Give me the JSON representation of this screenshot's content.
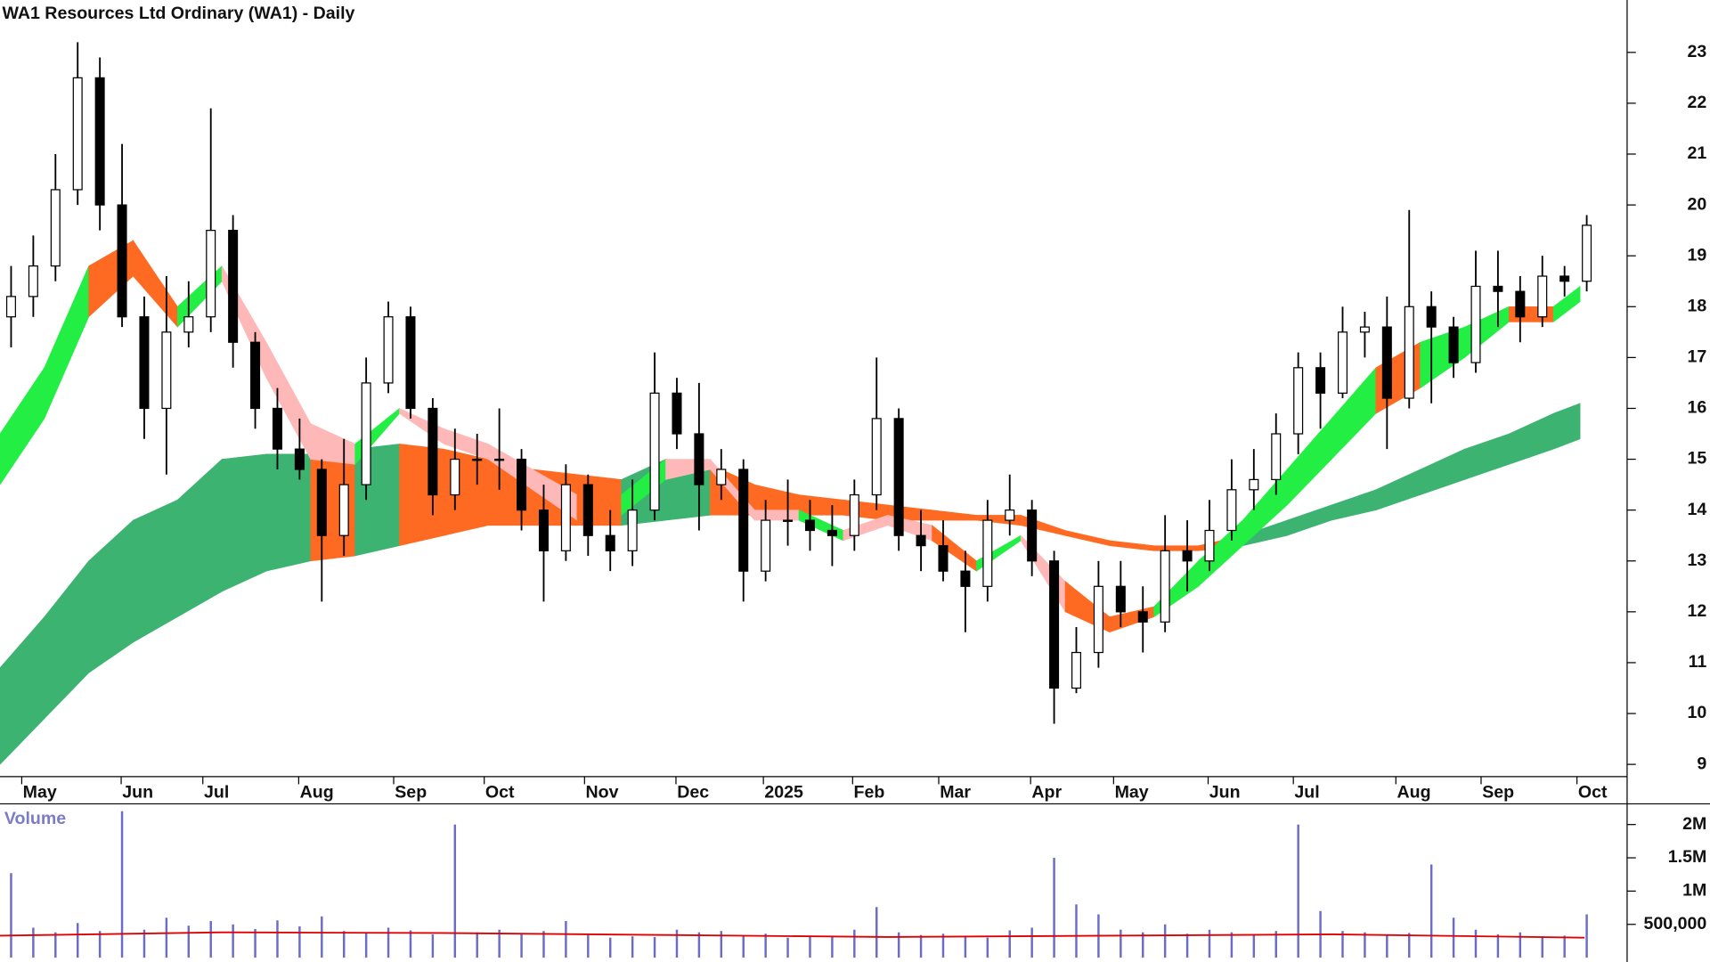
{
  "title": "WA1 Resources Ltd Ordinary (WA1) - Daily",
  "chart_data": [
    {
      "type": "candlestick",
      "x": [
        2.5,
        7.5,
        12.5,
        17.5,
        22.5,
        27.5,
        32.5,
        37.5,
        42.5,
        47.5,
        52.5,
        57.5,
        62.5,
        67.5,
        72.5,
        77.5,
        82.5,
        87.5,
        92.5,
        97.5,
        102.5,
        107.5,
        112.5,
        117.5,
        122.5,
        127.5,
        132.5,
        137.5,
        142.5,
        147.5,
        152.5,
        157.5,
        162.5,
        167.5,
        172.5,
        177.5,
        182.5,
        187.5,
        192.5,
        197.5,
        202.5,
        207.5,
        212.5,
        217.5,
        222.5,
        227.5,
        232.5,
        237.5,
        242.5,
        247.5,
        252.5,
        257.5,
        262.5,
        267.5,
        272.5,
        277.5,
        282.5,
        287.5,
        292.5,
        297.5,
        302.5,
        307.5,
        312.5,
        317.5,
        322.5,
        327.5,
        332.5,
        337.5,
        342.5,
        347.5,
        352.5,
        357.5
      ],
      "open": [
        17.8,
        18.2,
        18.8,
        20.3,
        22.5,
        20.0,
        17.8,
        16.0,
        17.5,
        17.8,
        19.5,
        17.3,
        16.0,
        15.2,
        14.8,
        13.5,
        14.5,
        16.5,
        17.8,
        16.0,
        14.3,
        15.0,
        15.0,
        15.0,
        14.0,
        13.2,
        14.5,
        13.5,
        13.2,
        14.0,
        16.3,
        15.5,
        14.5,
        14.8,
        12.8,
        13.8,
        13.8,
        13.6,
        13.5,
        14.3,
        15.8,
        13.5,
        13.3,
        12.8,
        12.5,
        13.8,
        14.0,
        13.0,
        10.5,
        11.2,
        12.5,
        12.0,
        11.8,
        13.2,
        13.0,
        13.6,
        14.4,
        14.6,
        15.5,
        16.8,
        16.3,
        17.5,
        17.6,
        16.2,
        18.0,
        17.6,
        16.9,
        18.4,
        18.3,
        17.8,
        18.6,
        18.5
      ],
      "high": [
        18.8,
        19.4,
        21.0,
        23.2,
        22.9,
        21.2,
        18.2,
        18.6,
        18.5,
        21.9,
        19.8,
        17.5,
        16.4,
        15.8,
        15.0,
        15.4,
        17.0,
        18.1,
        18.0,
        16.2,
        15.6,
        15.5,
        16.0,
        15.2,
        14.5,
        14.9,
        14.7,
        14.0,
        14.6,
        17.1,
        16.6,
        16.5,
        15.2,
        15.0,
        14.2,
        14.6,
        14.2,
        14.1,
        14.6,
        17.0,
        16.0,
        14.0,
        13.8,
        13.2,
        14.2,
        14.7,
        14.2,
        13.2,
        11.7,
        13.0,
        13.0,
        12.5,
        13.9,
        13.8,
        14.2,
        15.0,
        15.2,
        15.9,
        17.1,
        17.1,
        18.0,
        17.9,
        18.2,
        19.9,
        18.3,
        17.8,
        19.1,
        19.1,
        18.6,
        19.0,
        18.8,
        19.8
      ],
      "low": [
        17.2,
        17.8,
        18.5,
        20.0,
        19.5,
        17.6,
        15.4,
        14.7,
        17.2,
        17.5,
        16.8,
        15.6,
        14.8,
        14.6,
        12.2,
        13.1,
        14.2,
        16.3,
        15.8,
        13.9,
        14.0,
        14.5,
        14.4,
        13.6,
        12.2,
        13.0,
        13.1,
        12.8,
        12.9,
        13.8,
        15.2,
        13.6,
        14.2,
        12.2,
        12.6,
        13.3,
        13.2,
        12.9,
        13.2,
        14.0,
        13.2,
        12.8,
        12.6,
        11.6,
        12.2,
        13.5,
        12.7,
        9.8,
        10.4,
        10.9,
        11.7,
        11.2,
        11.6,
        12.4,
        12.8,
        13.4,
        14.0,
        14.3,
        15.1,
        15.6,
        16.2,
        17.0,
        15.2,
        16.0,
        16.1,
        16.6,
        16.7,
        17.6,
        17.3,
        17.6,
        18.2,
        18.3
      ],
      "close": [
        18.2,
        18.8,
        20.3,
        22.5,
        20.0,
        17.8,
        16.0,
        17.5,
        17.8,
        19.5,
        17.3,
        16.0,
        15.2,
        14.8,
        13.5,
        14.5,
        16.5,
        17.8,
        16.0,
        14.3,
        15.0,
        15.0,
        15.0,
        14.0,
        13.2,
        14.5,
        13.5,
        13.2,
        14.0,
        16.3,
        15.5,
        14.5,
        14.8,
        12.8,
        13.8,
        13.8,
        13.6,
        13.5,
        14.3,
        15.8,
        13.5,
        13.3,
        12.8,
        12.5,
        13.8,
        14.0,
        13.0,
        10.5,
        11.2,
        12.5,
        12.0,
        11.8,
        13.2,
        13.0,
        13.6,
        14.4,
        14.6,
        15.5,
        16.8,
        16.3,
        17.5,
        17.6,
        16.2,
        18.0,
        17.6,
        16.9,
        18.4,
        18.3,
        17.8,
        18.6,
        18.5,
        19.6
      ],
      "up_color": "#ffffff",
      "down_color": "#000000",
      "bands": [
        {
          "x": [
            0,
            10,
            20,
            30,
            40,
            50,
            60,
            70,
            80,
            90,
            100,
            110,
            120,
            130,
            140,
            150,
            160,
            170,
            180,
            190,
            200,
            210,
            220,
            230,
            240,
            250,
            260,
            270,
            280,
            290,
            300,
            310,
            320,
            330,
            340,
            350,
            356
          ],
          "upper": [
            10.9,
            11.9,
            13.0,
            13.8,
            14.2,
            15.0,
            15.1,
            15.1,
            15.2,
            15.3,
            15.2,
            15.0,
            14.8,
            14.7,
            14.6,
            15.0,
            14.9,
            14.5,
            14.3,
            14.2,
            14.1,
            14.0,
            13.9,
            13.9,
            13.6,
            13.4,
            13.3,
            13.3,
            13.5,
            13.8,
            14.1,
            14.4,
            14.8,
            15.2,
            15.5,
            15.9,
            16.1
          ],
          "lower": [
            9.0,
            9.9,
            10.8,
            11.4,
            11.9,
            12.4,
            12.8,
            13.0,
            13.1,
            13.3,
            13.5,
            13.7,
            13.7,
            13.7,
            13.7,
            13.8,
            13.9,
            13.9,
            13.9,
            13.9,
            13.8,
            13.8,
            13.8,
            13.7,
            13.5,
            13.3,
            13.2,
            13.2,
            13.3,
            13.5,
            13.8,
            14.0,
            14.3,
            14.6,
            14.9,
            15.2,
            15.4
          ],
          "segment_colors": [
            "#3cb371",
            "#3cb371",
            "#3cb371",
            "#3cb371",
            "#3cb371",
            "#3cb371",
            "#3cb371",
            "#ff6a22",
            "#3cb371",
            "#ff6a22",
            "#ff6a22",
            "#ff6a22",
            "#ff6a22",
            "#ff6a22",
            "#3cb371",
            "#3cb371",
            "#ff6a22",
            "#ff6a22",
            "#ff6a22",
            "#ff6a22",
            "#ff6a22",
            "#ff6a22",
            "#ff6a22",
            "#ff6a22",
            "#ff6a22",
            "#ff6a22",
            "#ff6a22",
            "#ff6a22",
            "#3cb371",
            "#3cb371",
            "#3cb371",
            "#3cb371",
            "#3cb371",
            "#3cb371",
            "#3cb371",
            "#3cb371"
          ]
        },
        {
          "x": [
            0,
            10,
            20,
            30,
            40,
            50,
            60,
            70,
            80,
            90,
            100,
            110,
            120,
            130,
            140,
            150,
            160,
            170,
            180,
            190,
            200,
            210,
            220,
            230,
            240,
            250,
            260,
            270,
            280,
            290,
            300,
            310,
            320,
            330,
            340,
            350,
            356
          ],
          "upper": [
            15.5,
            16.8,
            18.8,
            19.3,
            18.0,
            18.8,
            17.3,
            15.7,
            15.3,
            16.0,
            15.6,
            15.3,
            14.8,
            14.3,
            14.3,
            15.0,
            15.0,
            14.0,
            14.0,
            13.6,
            13.9,
            13.7,
            13.0,
            13.5,
            12.6,
            11.9,
            12.1,
            13.0,
            13.8,
            14.8,
            15.8,
            16.8,
            17.3,
            17.6,
            18.0,
            18.0,
            18.4
          ],
          "lower": [
            14.5,
            15.8,
            17.8,
            18.6,
            17.6,
            18.5,
            16.6,
            15.0,
            14.9,
            15.9,
            15.3,
            15.0,
            14.4,
            13.8,
            13.9,
            14.6,
            14.8,
            13.8,
            13.8,
            13.4,
            13.7,
            13.4,
            12.8,
            13.4,
            12.0,
            11.6,
            11.9,
            12.5,
            13.3,
            14.1,
            15.0,
            15.9,
            16.4,
            17.0,
            17.7,
            17.7,
            18.1
          ],
          "segment_colors": [
            "#22ee44",
            "#22ee44",
            "#ff6a22",
            "#ff6a22",
            "#22ee44",
            "#ffb8b8",
            "#ffb8b8",
            "#ffb8b8",
            "#22ee44",
            "#ffb8b8",
            "#ffb8b8",
            "#ffb8b8",
            "#ffb8b8",
            "#ff6a22",
            "#22ee44",
            "#ffb8b8",
            "#ffb8b8",
            "#ffb8b8",
            "#22ee44",
            "#ffb8b8",
            "#ffb8b8",
            "#ff6a22",
            "#22ee44",
            "#ffb8b8",
            "#ff6a22",
            "#ff6a22",
            "#22ee44",
            "#22ee44",
            "#22ee44",
            "#22ee44",
            "#22ee44",
            "#ff6a22",
            "#22ee44",
            "#22ee44",
            "#ff6a22",
            "#22ee44"
          ]
        }
      ],
      "xlim": [
        0,
        366.6
      ],
      "xticks": [
        {
          "value": 4.9,
          "label": "May"
        },
        {
          "value": 27.3,
          "label": "Jun"
        },
        {
          "value": 45.7,
          "label": "Jul"
        },
        {
          "value": 67.3,
          "label": "Aug"
        },
        {
          "value": 88.7,
          "label": "Sep"
        },
        {
          "value": 109.1,
          "label": "Oct"
        },
        {
          "value": 131.7,
          "label": "Nov"
        },
        {
          "value": 152.3,
          "label": "Dec"
        },
        {
          "value": 172.0,
          "label": "2025"
        },
        {
          "value": 192.1,
          "label": "Feb"
        },
        {
          "value": 211.5,
          "label": "Mar"
        },
        {
          "value": 232.2,
          "label": "Apr"
        },
        {
          "value": 250.9,
          "label": "May"
        },
        {
          "value": 272.2,
          "label": "Jun"
        },
        {
          "value": 291.4,
          "label": "Jul"
        },
        {
          "value": 314.5,
          "label": "Aug"
        },
        {
          "value": 333.7,
          "label": "Sep"
        },
        {
          "value": 355.3,
          "label": "Oct"
        }
      ],
      "ylim": [
        8.76,
        24.03
      ],
      "yticks": [
        9,
        10,
        11,
        12,
        13,
        14,
        15,
        16,
        17,
        18,
        19,
        20,
        21,
        22,
        23
      ]
    },
    {
      "type": "bar",
      "title": "Volume",
      "x": [
        2.5,
        7.5,
        12.5,
        17.5,
        22.5,
        27.5,
        32.5,
        37.5,
        42.5,
        47.5,
        52.5,
        57.5,
        62.5,
        67.5,
        72.5,
        77.5,
        82.5,
        87.5,
        92.5,
        97.5,
        102.5,
        107.5,
        112.5,
        117.5,
        122.5,
        127.5,
        132.5,
        137.5,
        142.5,
        147.5,
        152.5,
        157.5,
        162.5,
        167.5,
        172.5,
        177.5,
        182.5,
        187.5,
        192.5,
        197.5,
        202.5,
        207.5,
        212.5,
        217.5,
        222.5,
        227.5,
        232.5,
        237.5,
        242.5,
        247.5,
        252.5,
        257.5,
        262.5,
        267.5,
        272.5,
        277.5,
        282.5,
        287.5,
        292.5,
        297.5,
        302.5,
        307.5,
        312.5,
        317.5,
        322.5,
        327.5,
        332.5,
        337.5,
        342.5,
        347.5,
        352.5,
        357.5
      ],
      "values": [
        1270000,
        450000,
        380000,
        520000,
        400000,
        2200000,
        420000,
        600000,
        480000,
        550000,
        500000,
        430000,
        560000,
        470000,
        620000,
        400000,
        380000,
        450000,
        410000,
        350000,
        2000000,
        380000,
        420000,
        360000,
        400000,
        550000,
        340000,
        300000,
        320000,
        310000,
        420000,
        380000,
        400000,
        330000,
        360000,
        300000,
        330000,
        320000,
        420000,
        760000,
        380000,
        340000,
        360000,
        330000,
        300000,
        410000,
        450000,
        1500000,
        800000,
        650000,
        420000,
        380000,
        500000,
        360000,
        420000,
        380000,
        350000,
        400000,
        2000000,
        700000,
        400000,
        380000,
        330000,
        370000,
        1400000,
        600000,
        420000,
        350000,
        380000,
        320000,
        330000,
        650000
      ],
      "color": "#6b6bc8",
      "ma": {
        "x": [
          0,
          50,
          100,
          150,
          200,
          250,
          300,
          357
        ],
        "values": [
          330000,
          380000,
          370000,
          340000,
          310000,
          330000,
          350000,
          300000
        ],
        "color": "#e00000"
      },
      "xlim": [
        0,
        366.6
      ],
      "ylim": [
        0,
        2311000
      ],
      "yticks": [
        {
          "value": 500000,
          "label": "500,000"
        },
        {
          "value": 1000000,
          "label": "1M"
        },
        {
          "value": 1500000,
          "label": "1.5M"
        },
        {
          "value": 2000000,
          "label": "2M"
        }
      ]
    }
  ]
}
